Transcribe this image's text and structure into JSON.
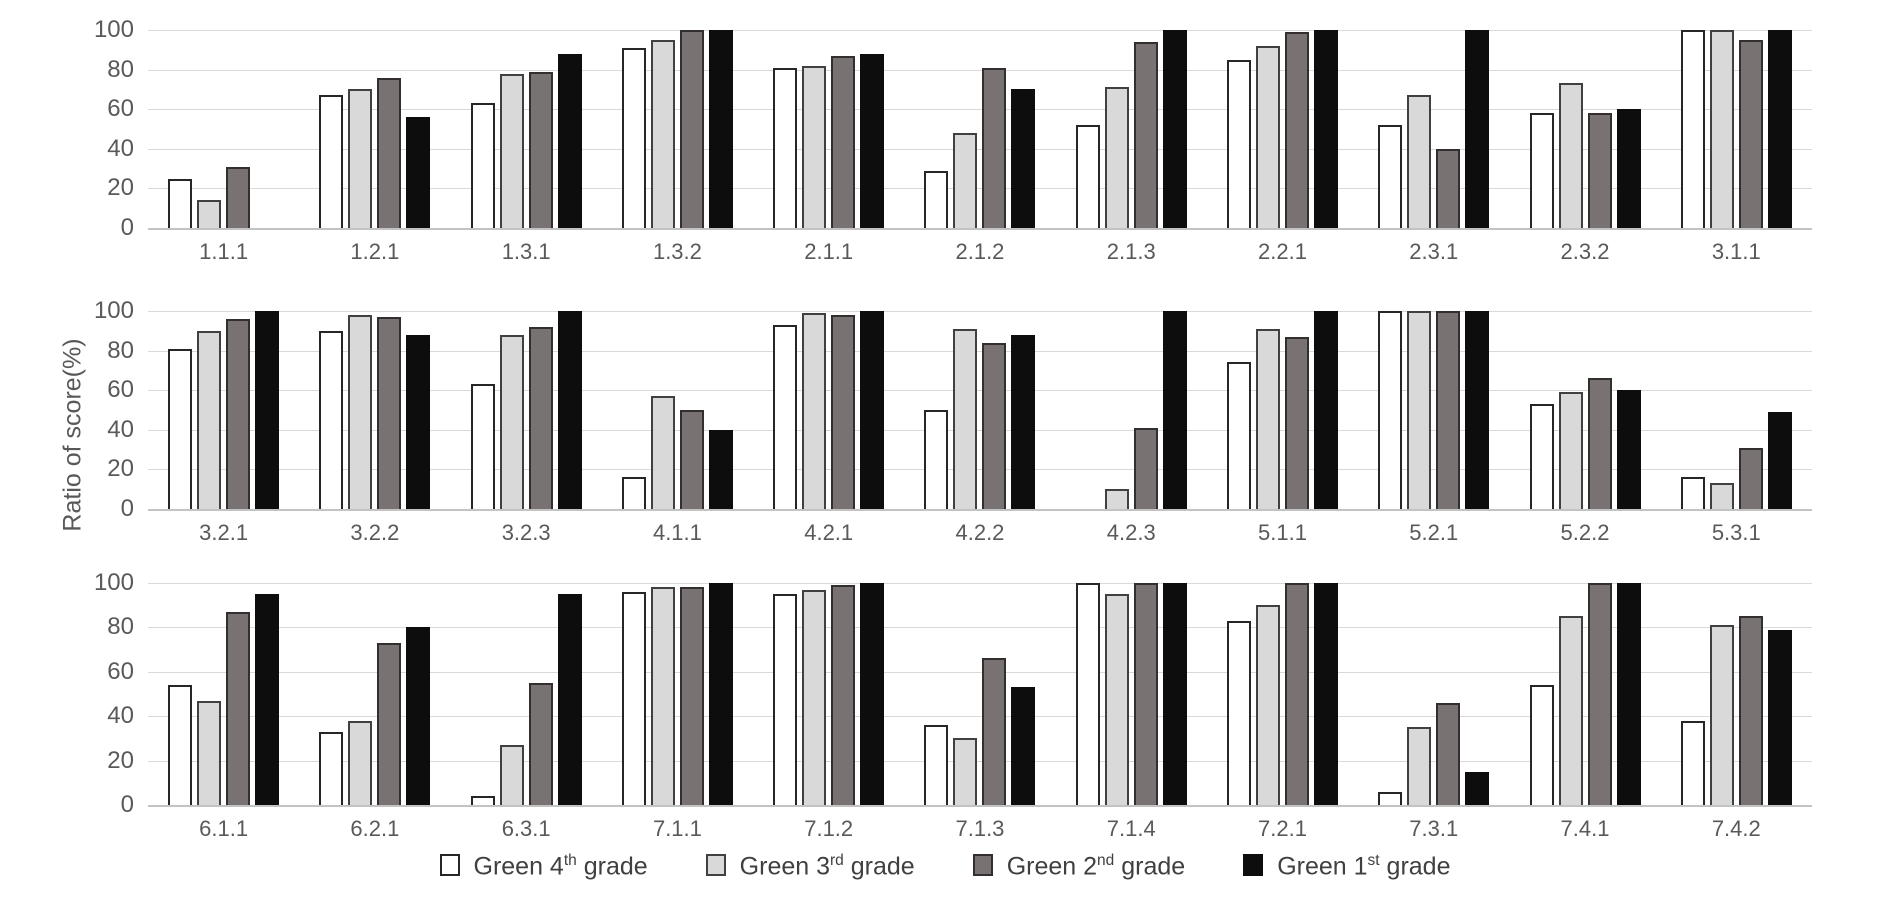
{
  "chart": {
    "ylabel": "Ratio of score(%)",
    "colors": {
      "grid": "#d9d9d9",
      "axis_line": "#c3c3c3",
      "tick_text": "#595959",
      "legend_text": "#404040"
    },
    "series_styles": [
      {
        "name": "Green 4th grade",
        "fill": "#ffffff",
        "border": "#262626"
      },
      {
        "name": "Green 3rd grade",
        "fill": "#d9d9d9",
        "border": "#404040"
      },
      {
        "name": "Green 2nd grade",
        "fill": "#787272",
        "border": "#332f2f"
      },
      {
        "name": "Green 1st grade",
        "fill": "#0d0d0d",
        "border": "#0d0d0d"
      }
    ],
    "legend": {
      "position": "bottom",
      "items": [
        {
          "label": "Green 4th grade",
          "base": "Green 4",
          "sup": "th",
          "rest": " grade",
          "fill": "#ffffff",
          "border": "#262626"
        },
        {
          "label": "Green 3rd grade",
          "base": "Green 3",
          "sup": "rd",
          "rest": " grade",
          "fill": "#d9d9d9",
          "border": "#404040"
        },
        {
          "label": "Green 2nd grade",
          "base": "Green 2",
          "sup": "nd",
          "rest": " grade",
          "fill": "#787272",
          "border": "#332f2f"
        },
        {
          "label": "Green 1st grade",
          "base": "Green 1",
          "sup": "st",
          "rest": " grade",
          "fill": "#0d0d0d",
          "border": "#0d0d0d"
        }
      ]
    }
  },
  "chart_data": [
    {
      "type": "bar",
      "row": 1,
      "categories": [
        "1.1.1",
        "1.2.1",
        "1.3.1",
        "1.3.2",
        "2.1.1",
        "2.1.2",
        "2.1.3",
        "2.2.1",
        "2.3.1",
        "2.3.2",
        "3.1.1"
      ],
      "series": [
        {
          "name": "Green 4th grade",
          "values": [
            25,
            67,
            63,
            91,
            81,
            29,
            52,
            85,
            52,
            58,
            100
          ]
        },
        {
          "name": "Green 3rd grade",
          "values": [
            14,
            70,
            78,
            95,
            82,
            48,
            71,
            92,
            67,
            73,
            100
          ]
        },
        {
          "name": "Green 2nd grade",
          "values": [
            31,
            76,
            79,
            100,
            87,
            81,
            94,
            99,
            40,
            58,
            95
          ]
        },
        {
          "name": "Green 1st grade",
          "values": [
            0,
            56,
            88,
            100,
            88,
            70,
            100,
            100,
            100,
            60,
            100
          ]
        }
      ],
      "ylim": [
        0,
        100
      ],
      "y_ticks": [
        0,
        20,
        40,
        60,
        80,
        100
      ],
      "grid": true,
      "legend_position": "none"
    },
    {
      "type": "bar",
      "row": 2,
      "categories": [
        "3.2.1",
        "3.2.2",
        "3.2.3",
        "4.1.1",
        "4.2.1",
        "4.2.2",
        "4.2.3",
        "5.1.1",
        "5.2.1",
        "5.2.2",
        "5.3.1"
      ],
      "series": [
        {
          "name": "Green 4th grade",
          "values": [
            81,
            90,
            63,
            16,
            93,
            50,
            0,
            74,
            100,
            53,
            16
          ]
        },
        {
          "name": "Green 3rd grade",
          "values": [
            90,
            98,
            88,
            57,
            99,
            91,
            10,
            91,
            100,
            59,
            13
          ]
        },
        {
          "name": "Green 2nd grade",
          "values": [
            96,
            97,
            92,
            50,
            98,
            84,
            41,
            87,
            100,
            66,
            31
          ]
        },
        {
          "name": "Green 1st grade",
          "values": [
            100,
            88,
            100,
            40,
            100,
            88,
            100,
            100,
            100,
            60,
            49
          ]
        }
      ],
      "ylim": [
        0,
        100
      ],
      "y_ticks": [
        0,
        20,
        40,
        60,
        80,
        100
      ],
      "grid": true,
      "legend_position": "none"
    },
    {
      "type": "bar",
      "row": 3,
      "categories": [
        "6.1.1",
        "6.2.1",
        "6.3.1",
        "7.1.1",
        "7.1.2",
        "7.1.3",
        "7.1.4",
        "7.2.1",
        "7.3.1",
        "7.4.1",
        "7.4.2"
      ],
      "series": [
        {
          "name": "Green 4th grade",
          "values": [
            54,
            33,
            4,
            96,
            95,
            36,
            100,
            83,
            6,
            54,
            38
          ]
        },
        {
          "name": "Green 3rd grade",
          "values": [
            47,
            38,
            27,
            98,
            97,
            30,
            95,
            90,
            35,
            85,
            81
          ]
        },
        {
          "name": "Green 2nd grade",
          "values": [
            87,
            73,
            55,
            98,
            99,
            66,
            100,
            100,
            46,
            100,
            85
          ]
        },
        {
          "name": "Green 1st grade",
          "values": [
            95,
            80,
            95,
            100,
            100,
            53,
            100,
            100,
            15,
            100,
            79
          ]
        }
      ],
      "ylim": [
        0,
        100
      ],
      "y_ticks": [
        0,
        20,
        40,
        60,
        80,
        100
      ],
      "grid": true,
      "legend_position": "bottom"
    }
  ]
}
